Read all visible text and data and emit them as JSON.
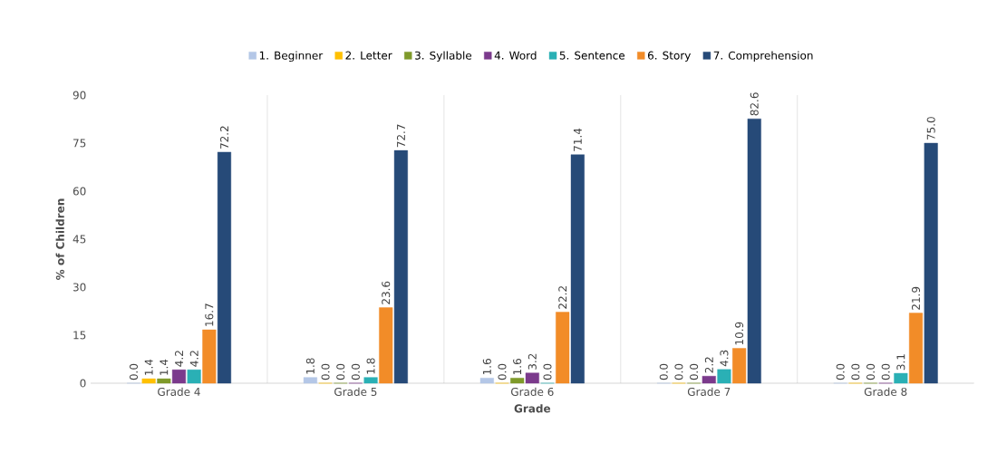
{
  "chart_data": {
    "type": "bar",
    "xlabel": "Grade",
    "ylabel": "% of Children",
    "categories": [
      "Grade 4",
      "Grade 5",
      "Grade 6",
      "Grade 7",
      "Grade 8"
    ],
    "series": [
      {
        "name": "1. Beginner",
        "color": "#b4c7e7",
        "values": [
          0.0,
          1.8,
          1.6,
          0.0,
          0.0
        ],
        "value_labels": [
          "0.0",
          "1.8",
          "1.6",
          "0.0",
          "0.0"
        ]
      },
      {
        "name": "2. Letter",
        "color": "#ffc000",
        "values": [
          1.4,
          0.0,
          0.0,
          0.0,
          0.0
        ],
        "value_labels": [
          "1.4",
          "0.0",
          "0.0",
          "0.0",
          "0.0"
        ]
      },
      {
        "name": "3. Syllable",
        "color": "#7f9a2a",
        "values": [
          1.4,
          0.0,
          1.6,
          0.0,
          0.0
        ],
        "value_labels": [
          "1.4",
          "0.0",
          "1.6",
          "0.0",
          "0.0"
        ]
      },
      {
        "name": "4. Word",
        "color": "#7b3a8c",
        "values": [
          4.2,
          0.0,
          3.2,
          2.2,
          0.0
        ],
        "value_labels": [
          "4.2",
          "0.0",
          "3.2",
          "2.2",
          "0.0"
        ]
      },
      {
        "name": "5. Sentence",
        "color": "#2ab0b5",
        "values": [
          4.2,
          1.8,
          0.0,
          4.3,
          3.1
        ],
        "value_labels": [
          "4.2",
          "1.8",
          "0.0",
          "4.3",
          "3.1"
        ]
      },
      {
        "name": "6. Story",
        "color": "#f28c28",
        "values": [
          16.7,
          23.6,
          22.2,
          10.9,
          21.9
        ],
        "value_labels": [
          "16.7",
          "23.6",
          "22.2",
          "10.9",
          "21.9"
        ]
      },
      {
        "name": "7. Comprehension",
        "color": "#264a78",
        "values": [
          72.2,
          72.7,
          71.4,
          82.6,
          75.0
        ],
        "value_labels": [
          "72.2",
          "72.7",
          "71.4",
          "82.6",
          "75.0"
        ]
      }
    ],
    "ylim": [
      0,
      90
    ],
    "yticks": [
      0,
      15,
      30,
      45,
      60,
      75,
      90
    ],
    "grid": "x",
    "legend": "top"
  }
}
